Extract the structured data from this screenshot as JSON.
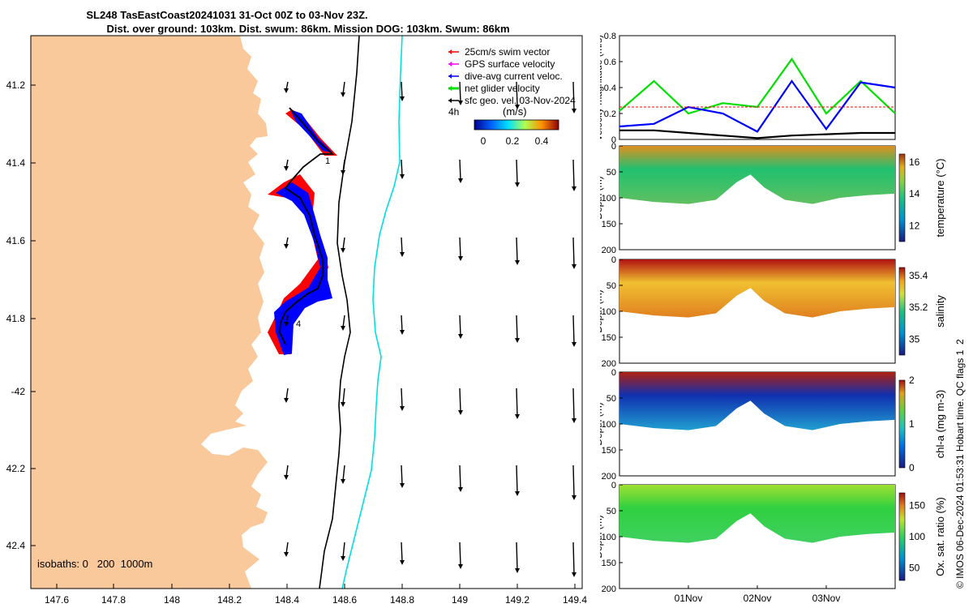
{
  "title": {
    "line1": "SL248 TasEastCoast20241031 31-Oct 00Z to 03-Nov 23Z.",
    "line2": "Dist. over ground: 103km. Dist. swum: 86km. Mission DOG: 103km. Swum: 86km"
  },
  "colors": {
    "land": "#f9c89b",
    "swim": "#ff0000",
    "gps": "#ff00ff",
    "dive_avg": "#0000ff",
    "net": "#00e000",
    "sfc": "#000000",
    "isobath_200": "#000000",
    "isobath_1000": "#00e0e0"
  },
  "map": {
    "legend": [
      {
        "label": "25cm/s swim vector",
        "color": "#ff0000"
      },
      {
        "label": "GPS surface velocity",
        "color": "#ff00ff"
      },
      {
        "label": "dive-avg current veloc.",
        "color": "#0000ff"
      },
      {
        "label": "net glider velocity",
        "color": "#00e000"
      },
      {
        "label": "sfc geo. vel. 03-Nov-2024",
        "color": "#000000"
      }
    ],
    "interval_label": "4h",
    "colorbar_unit": "(m/s)",
    "colorbar_ticks": [
      "0",
      "0.2",
      "0.4"
    ],
    "isobath_note": "isobaths: 0   200  1000m",
    "track_markers": [
      "1",
      "4"
    ],
    "lon_ticks": [
      "147.6",
      "147.8",
      "148",
      "148.2",
      "148.4",
      "148.6",
      "148.8",
      "149",
      "149.2",
      "149.4"
    ],
    "lat_ticks": [
      "41.2",
      "41.4",
      "41.6",
      "41.8",
      "-42",
      "42.2",
      "42.4"
    ]
  },
  "chart_data": [
    {
      "type": "line",
      "ylabel": "velocity magnitude (m/s)",
      "ylim": [
        0,
        0.8
      ],
      "yticks": [
        "0",
        "0.2",
        "0.4",
        "0.6",
        "0.8"
      ],
      "x_days": [
        0,
        0.5,
        1,
        1.5,
        2,
        2.5,
        3,
        3.5,
        4
      ],
      "series": [
        {
          "name": "net glider velocity",
          "color": "#00e000",
          "values": [
            0.22,
            0.45,
            0.2,
            0.28,
            0.25,
            0.62,
            0.2,
            0.45,
            0.2
          ]
        },
        {
          "name": "dive-avg current veloc.",
          "color": "#0000ff",
          "values": [
            0.1,
            0.12,
            0.25,
            0.2,
            0.06,
            0.45,
            0.08,
            0.44,
            0.4
          ]
        },
        {
          "name": "swim",
          "color": "#ff0000",
          "values": [
            0.25,
            0.25,
            0.25,
            0.25,
            0.25,
            0.25,
            0.25,
            0.25,
            0.25
          ]
        },
        {
          "name": "sfc geo.",
          "color": "#000000",
          "values": [
            0.07,
            0.07,
            0.05,
            0.03,
            0.01,
            0.03,
            0.04,
            0.05,
            0.05
          ]
        }
      ]
    },
    {
      "type": "heatmap",
      "ylabel": "Depth (m)",
      "colorbar_label": "temperature (°C)",
      "clim": [
        11,
        16.5
      ],
      "cticks": [
        "12",
        "14",
        "16"
      ],
      "yticks": [
        "0",
        "50",
        "100",
        "150",
        "200"
      ]
    },
    {
      "type": "heatmap",
      "ylabel": "Depth (m)",
      "colorbar_label": "salinity",
      "clim": [
        34.9,
        35.45
      ],
      "cticks": [
        "35",
        "35.2",
        "35.4"
      ],
      "yticks": [
        "0",
        "50",
        "100",
        "150",
        "200"
      ]
    },
    {
      "type": "heatmap",
      "ylabel": "Depth (m)",
      "colorbar_label": "chl-a (mg m-3)",
      "clim": [
        0,
        2
      ],
      "cticks": [
        "0",
        "1",
        "2"
      ],
      "yticks": [
        "0",
        "50",
        "100",
        "150",
        "200"
      ]
    },
    {
      "type": "heatmap",
      "ylabel": "Depth (m)",
      "colorbar_label": "Ox. sat. ratio (%)",
      "clim": [
        30,
        170
      ],
      "cticks": [
        "50",
        "100",
        "150"
      ],
      "yticks": [
        "0",
        "50",
        "100",
        "150",
        "200"
      ]
    }
  ],
  "time_axis": {
    "ticks": [
      "01Nov",
      "02Nov",
      "03Nov"
    ]
  },
  "footer": {
    "credit": "© IMOS 06-Dec-2024 01:53:31 Hobart time. QC flags 1  2"
  }
}
